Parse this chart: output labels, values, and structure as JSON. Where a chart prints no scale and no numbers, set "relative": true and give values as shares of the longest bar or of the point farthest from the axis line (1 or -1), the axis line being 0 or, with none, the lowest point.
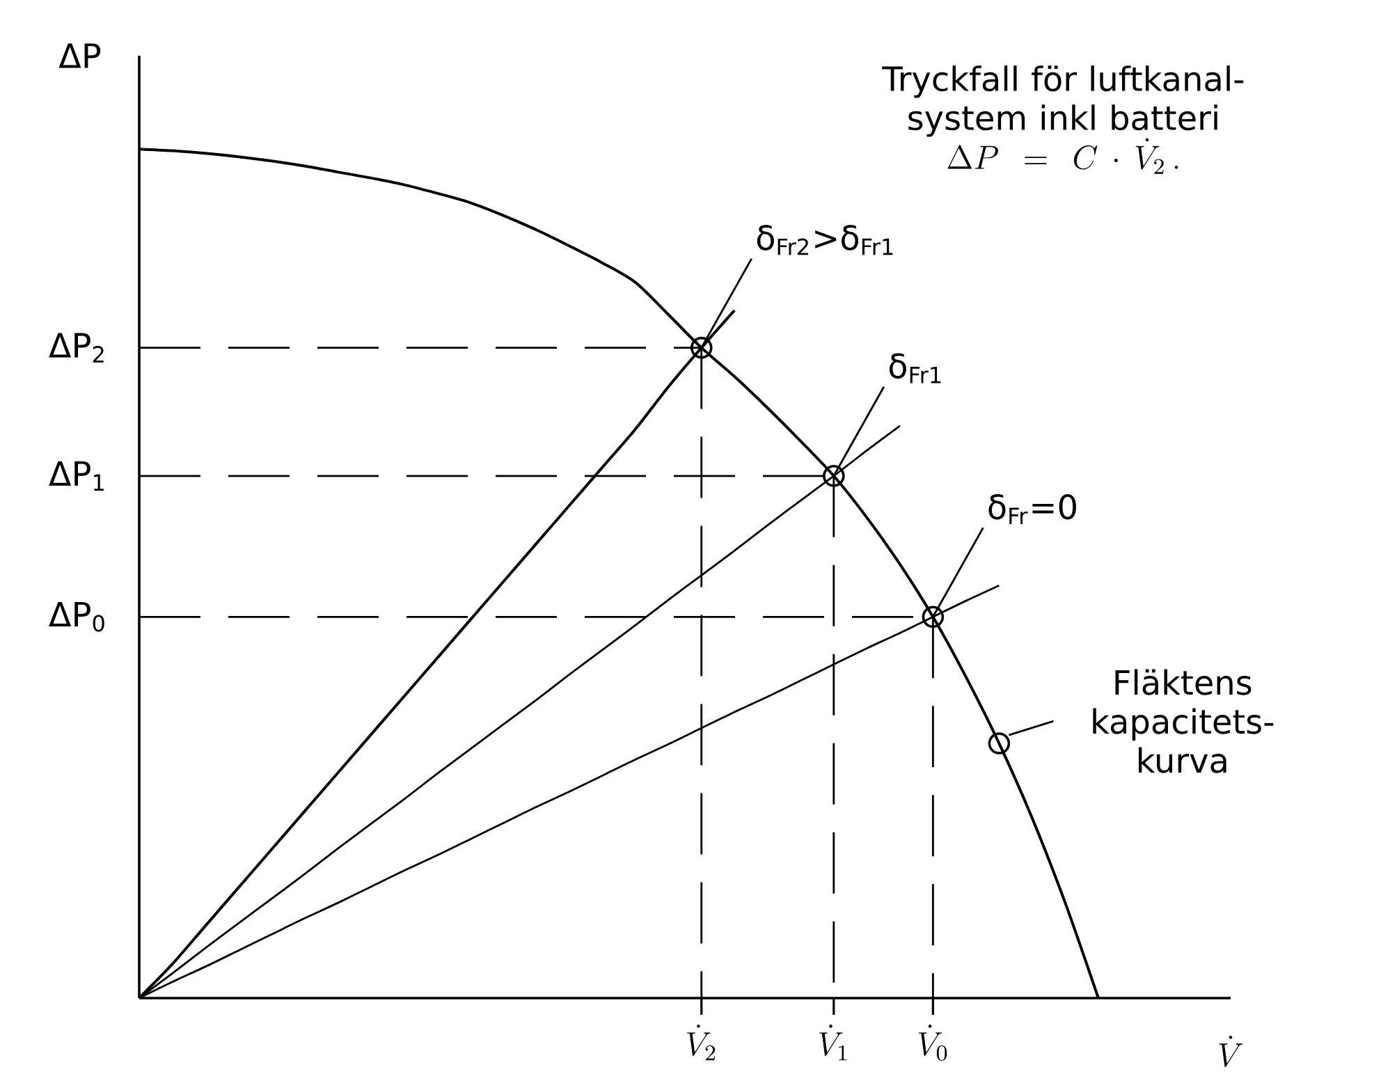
{
  "chart_data": {
    "type": "line",
    "relative": true,
    "xlabel": "\\dot{V}",
    "ylabel": "ΔP",
    "categories": [
      null,
      null,
      null,
      null,
      null,
      null,
      null,
      null,
      null,
      null,
      null,
      null,
      null,
      null,
      null,
      null,
      null,
      "\\dot{V}_2",
      null,
      null,
      null,
      "\\dot{V}_1",
      null,
      null,
      "\\dot{V}_0",
      null,
      null,
      null,
      null,
      null,
      null,
      null,
      null,
      null
    ],
    "series": [
      {
        "color": "#000000",
        "values": [
          1,
          0.998,
          0.995,
          0.991,
          0.986,
          0.98,
          0.973,
          0.966,
          0.958,
          0.948,
          0.937,
          0.922,
          0.905,
          0.886,
          0.866,
          0.843,
          0.805,
          0.766,
          0.732,
          0.695,
          0.656,
          0.615,
          0.566,
          0.511,
          0.449,
          0.378,
          0.3,
          0.212,
          0.112,
          0,
          null,
          null,
          null,
          null
        ]
      },
      {
        "color": "#000000",
        "values": [
          0,
          0.04,
          0.085,
          0.13,
          0.175,
          0.22,
          0.265,
          0.31,
          0.355,
          0.4,
          0.445,
          0.49,
          0.535,
          0.58,
          0.625,
          0.67,
          0.72,
          0.766,
          0.81,
          null,
          null,
          null,
          null,
          null,
          null,
          null,
          null,
          null,
          null,
          null,
          null,
          null,
          null,
          null
        ]
      },
      {
        "color": "#000000",
        "values": [
          0,
          0.029,
          0.059,
          0.088,
          0.117,
          0.146,
          0.176,
          0.205,
          0.234,
          0.264,
          0.293,
          0.322,
          0.351,
          0.381,
          0.41,
          0.439,
          0.469,
          0.498,
          0.527,
          0.557,
          0.586,
          0.615,
          0.645,
          0.674,
          null,
          null,
          null,
          null,
          null,
          null,
          null,
          null,
          null,
          null
        ]
      },
      {
        "color": "#000000",
        "values": [
          0,
          0.019,
          0.037,
          0.056,
          0.075,
          0.094,
          0.112,
          0.131,
          0.15,
          0.168,
          0.187,
          0.206,
          0.225,
          0.243,
          0.262,
          0.281,
          0.299,
          0.318,
          0.337,
          0.355,
          0.374,
          0.393,
          0.412,
          0.43,
          0.449,
          0.468,
          0.486,
          null,
          null,
          null,
          null,
          null,
          null,
          null
        ]
      },
      {
        "type": "scatter",
        "marker": "circle",
        "color": "#000000",
        "values": [
          null,
          null,
          null,
          null,
          null,
          null,
          null,
          null,
          null,
          null,
          null,
          null,
          null,
          null,
          null,
          null,
          null,
          0.766,
          null,
          null,
          null,
          0.615,
          null,
          null,
          0.449,
          null,
          0.3,
          null,
          null,
          null,
          null,
          null,
          null,
          null
        ]
      }
    ],
    "ref_lines": [
      {
        "axis": "y",
        "value": 0.766,
        "label": "ΔP$_{2}$",
        "line_style": "dashed"
      },
      {
        "axis": "y",
        "value": 0.615,
        "label": "ΔP$_{1}$",
        "line_style": "dashed"
      },
      {
        "axis": "y",
        "value": 0.449,
        "label": "ΔP$_{0}$",
        "line_style": "dashed"
      }
    ],
    "annotations": [
      "Tryckfall för luftkanal-system inkl batteri",
      "\\Delta P=C\\cdot\\dot{V}_2\\,.",
      "δ$_{Fr2}$>δ$_{Fr1}$",
      "δ$_{Fr1}$",
      "δ$_{Fr}$=0",
      "Fläktens kapacitets-kurva"
    ]
  }
}
